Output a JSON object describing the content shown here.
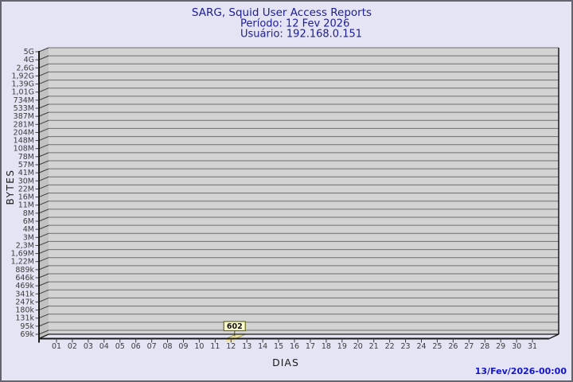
{
  "header": {
    "title": "SARG, Squid User Access Reports",
    "period": "Período: 12 Fev 2026",
    "user": "Usuário: 192.168.0.151"
  },
  "footer": {
    "timestamp": "13/Fev/2026-00:00"
  },
  "colors": {
    "background": "#e4e4f4",
    "frame_border": "#64646e",
    "title_text": "#1c1c96",
    "timestamp_text": "#1414cc",
    "plot_fill": "#d3d3d3",
    "wall_fill": "#c2c2c2",
    "gridline": "#6e6e6e",
    "axis": "#1a1a1a",
    "tick": "#3f3f3f",
    "tick_label": "#3c3c3c",
    "bar_fill": "#f0e59b",
    "bar_stroke": "#8c8c3a",
    "annotation_fill": "#ffffd2",
    "annotation_border": "#6e6e28",
    "annotation_text": "#111111"
  },
  "chart_data": {
    "type": "bar",
    "projection": "3d",
    "title": "SARG, Squid User Access Reports",
    "subtitle": [
      "Período: 12 Fev 2026",
      "Usuário: 192.168.0.151"
    ],
    "xlabel": "DIAS",
    "ylabel": "BYTES",
    "y_scale": "log",
    "ylim": [
      "69k",
      "5G"
    ],
    "grid": "on",
    "legend": "none",
    "y_tick_labels": [
      "5G",
      "4G",
      "2,6G",
      "1,92G",
      "1,39G",
      "1,01G",
      "734M",
      "533M",
      "387M",
      "281M",
      "204M",
      "148M",
      "108M",
      "78M",
      "57M",
      "41M",
      "30M",
      "22M",
      "16M",
      "11M",
      "8M",
      "6M",
      "4M",
      "3M",
      "2,3M",
      "1,69M",
      "1,22M",
      "889k",
      "646k",
      "469k",
      "341k",
      "247k",
      "180k",
      "131k",
      "95k",
      "69k"
    ],
    "categories": [
      "01",
      "02",
      "03",
      "04",
      "05",
      "06",
      "07",
      "08",
      "09",
      "10",
      "11",
      "12",
      "13",
      "14",
      "15",
      "16",
      "17",
      "18",
      "19",
      "20",
      "21",
      "22",
      "23",
      "24",
      "25",
      "26",
      "27",
      "28",
      "29",
      "30",
      "31"
    ],
    "values": [
      0,
      0,
      0,
      0,
      0,
      0,
      0,
      0,
      0,
      0,
      0,
      602,
      0,
      0,
      0,
      0,
      0,
      0,
      0,
      0,
      0,
      0,
      0,
      0,
      0,
      0,
      0,
      0,
      0,
      0,
      0
    ],
    "annotations": [
      {
        "day": "12",
        "label": "602"
      }
    ],
    "footer_timestamp": "13/Fev/2026-00:00"
  }
}
